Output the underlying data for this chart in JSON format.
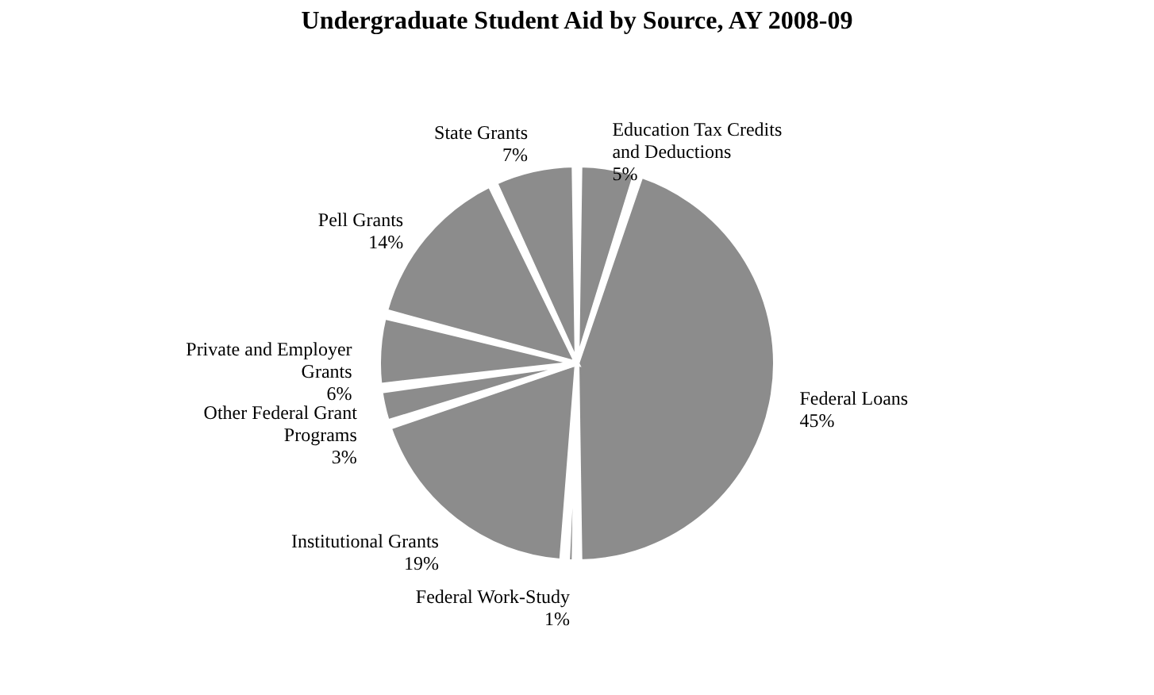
{
  "chart_data": {
    "type": "pie",
    "title": "Undergraduate Student Aid by Source, AY 2008-09",
    "categories": [
      "Education Tax Credits and Deductions",
      "Federal Loans",
      "Federal Work-Study",
      "Institutional Grants",
      "Other Federal Grant Programs",
      "Private and Employer Grants",
      "Pell Grants",
      "State Grants"
    ],
    "values": [
      5,
      45,
      1,
      19,
      3,
      6,
      14,
      7
    ],
    "value_labels": [
      "5%",
      "45%",
      "1%",
      "19%",
      "3%",
      "6%",
      "14%",
      "7%"
    ],
    "colors": [
      "#8c8c8c",
      "#8c8c8c",
      "#8c8c8c",
      "#8c8c8c",
      "#8c8c8c",
      "#8c8c8c",
      "#8c8c8c",
      "#8c8c8c"
    ],
    "legend": false
  }
}
